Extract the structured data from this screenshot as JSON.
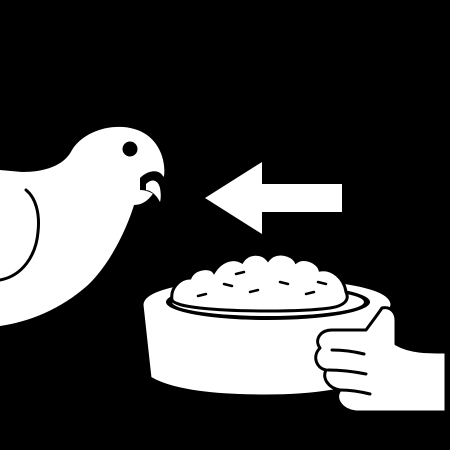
{
  "colors": {
    "background": "#000000",
    "foreground": "#ffffff"
  },
  "illustration": {
    "icons": [
      "pigeon-icon",
      "arrow-left-icon",
      "food-bowl-icon",
      "hand-icon"
    ]
  }
}
